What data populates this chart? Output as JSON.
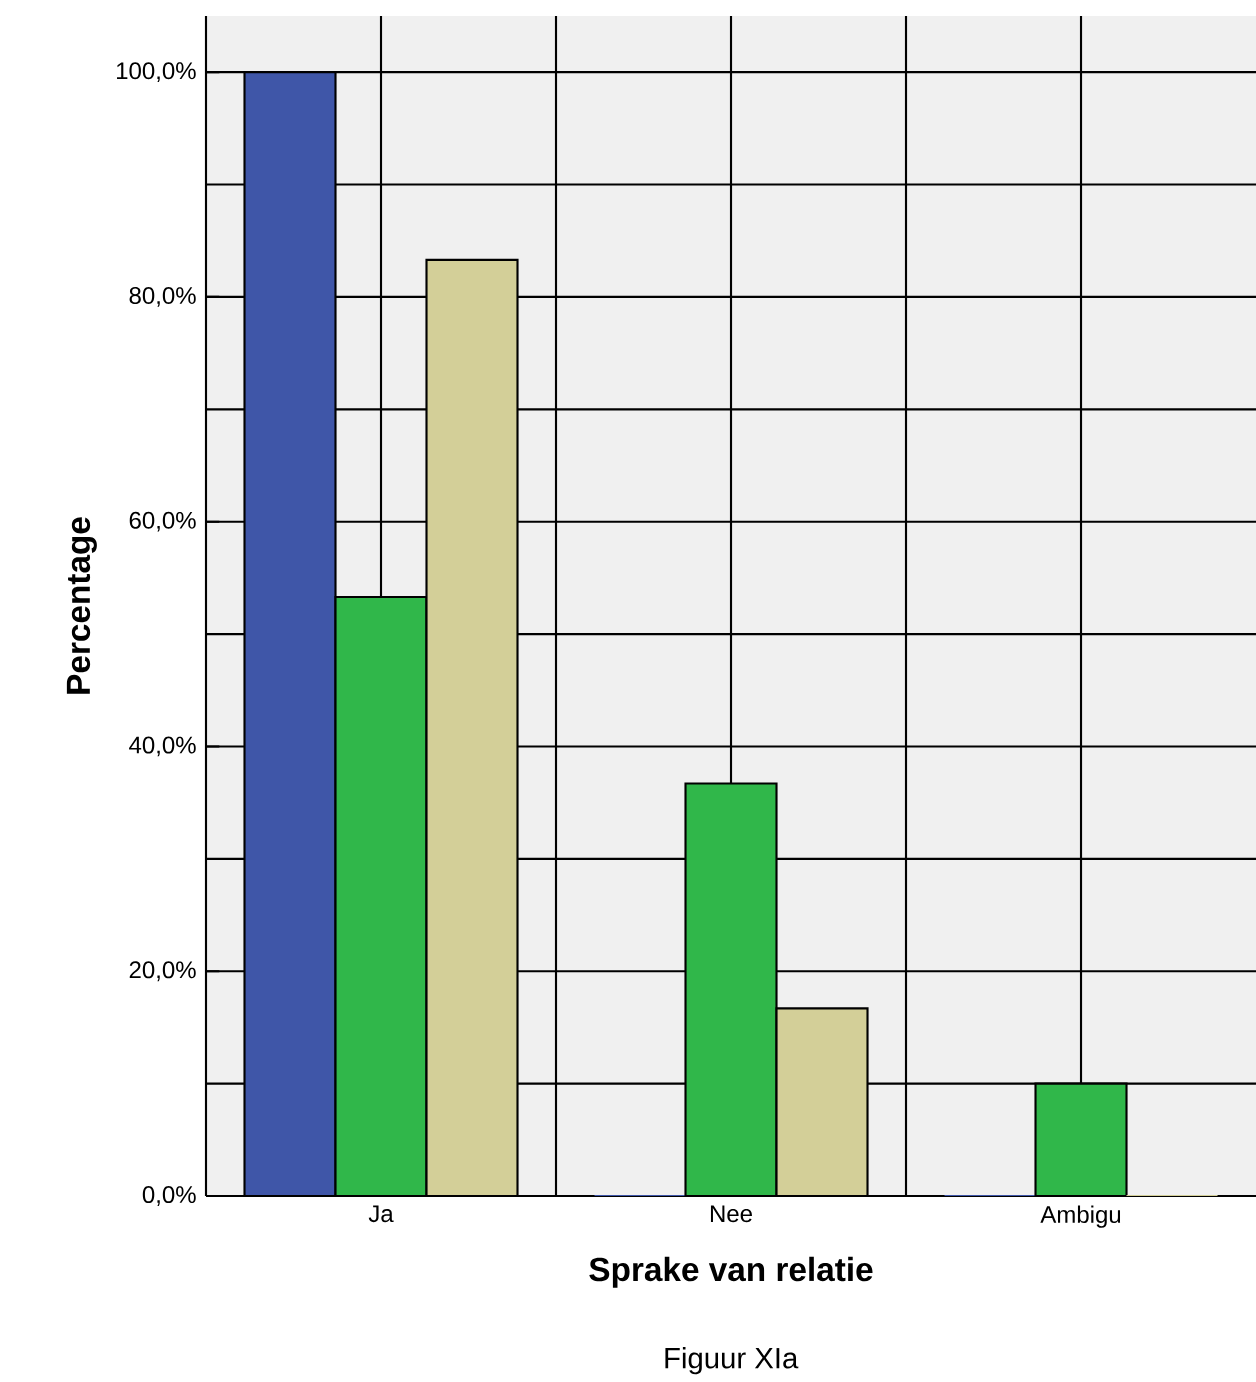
{
  "chart_data": {
    "type": "bar",
    "xlabel": "Sprake van relatie",
    "ylabel": "Percentage",
    "categories": [
      "Ja",
      "Nee",
      "Ambigu"
    ],
    "series": [
      {
        "color": "#3f56a8",
        "values": [
          100,
          0,
          0
        ]
      },
      {
        "color": "#30b74a",
        "values": [
          53.3,
          36.7,
          10
        ]
      },
      {
        "color": "#d3cf98",
        "values": [
          83.3,
          16.7,
          0
        ]
      }
    ],
    "ylim": [
      0,
      105
    ],
    "yticks": [
      {
        "value": 0,
        "label": "0,0%"
      },
      {
        "value": 20,
        "label": "20,0%"
      },
      {
        "value": 40,
        "label": "40,0%"
      },
      {
        "value": 60,
        "label": "60,0%"
      },
      {
        "value": 80,
        "label": "80,0%"
      },
      {
        "value": 100,
        "label": "100,0%"
      }
    ],
    "grid": true,
    "annotations": [
      "Figuur XIa"
    ]
  }
}
